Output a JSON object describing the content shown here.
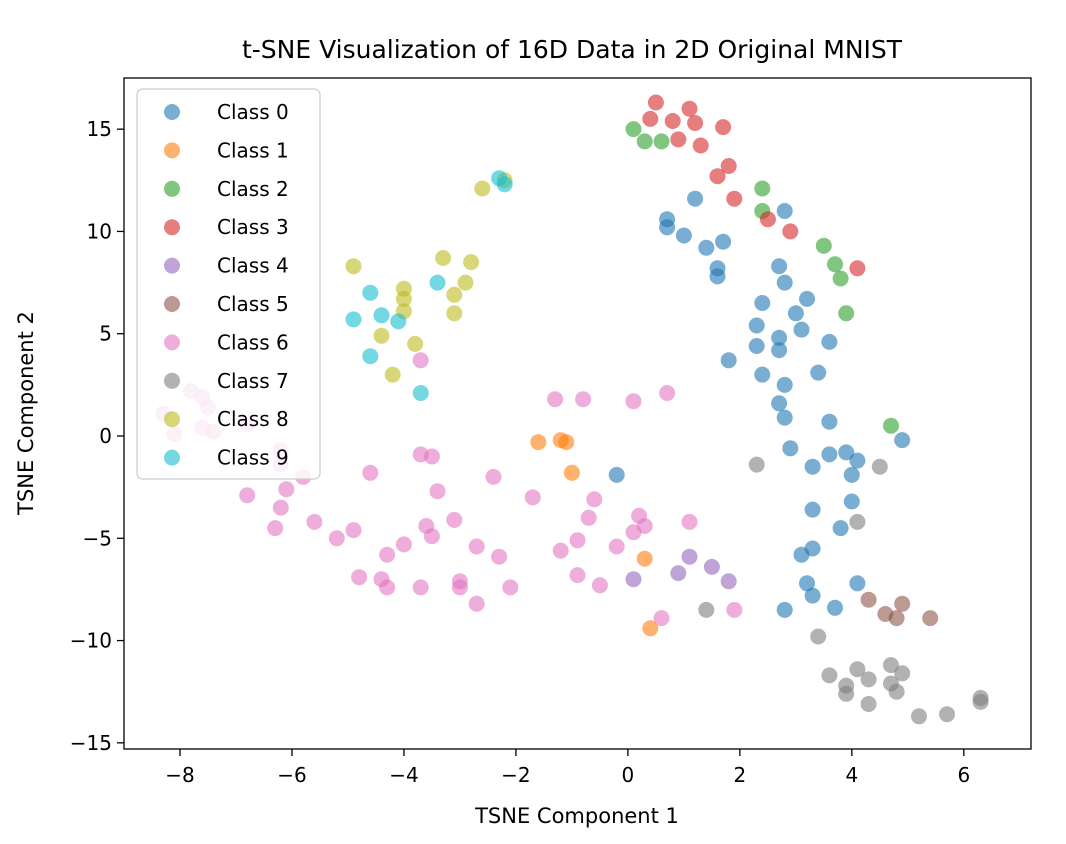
{
  "chart_data": {
    "type": "scatter",
    "title": "t-SNE Visualization of 16D Data in 2D Original MNIST",
    "xlabel": "TSNE Component 1",
    "ylabel": "TSNE Component 2",
    "xlim": [
      -9.0,
      7.2
    ],
    "ylim": [
      -15.3,
      17.5
    ],
    "xticks": [
      {
        "value": -8,
        "label": "−8"
      },
      {
        "value": -6,
        "label": "−6"
      },
      {
        "value": -4,
        "label": "−4"
      },
      {
        "value": -2,
        "label": "−2"
      },
      {
        "value": 0,
        "label": "0"
      },
      {
        "value": 2,
        "label": "2"
      },
      {
        "value": 4,
        "label": "4"
      },
      {
        "value": 6,
        "label": "6"
      }
    ],
    "yticks": [
      {
        "value": -15,
        "label": "−15"
      },
      {
        "value": -10,
        "label": "−10"
      },
      {
        "value": -5,
        "label": "−5"
      },
      {
        "value": 0,
        "label": "0"
      },
      {
        "value": 5,
        "label": "5"
      },
      {
        "value": 10,
        "label": "10"
      },
      {
        "value": 15,
        "label": "15"
      }
    ],
    "legend_position": "top-left",
    "grid": false,
    "series": [
      {
        "name": "Class 0",
        "color": "#1f77b4",
        "points": [
          [
            0.7,
            10.6
          ],
          [
            0.7,
            10.2
          ],
          [
            1.0,
            9.8
          ],
          [
            1.2,
            11.6
          ],
          [
            1.4,
            9.2
          ],
          [
            1.7,
            9.5
          ],
          [
            1.6,
            8.2
          ],
          [
            1.6,
            7.8
          ],
          [
            2.8,
            11.0
          ],
          [
            2.7,
            8.3
          ],
          [
            2.8,
            7.5
          ],
          [
            2.4,
            6.5
          ],
          [
            3.2,
            6.7
          ],
          [
            3.0,
            6.0
          ],
          [
            2.3,
            5.4
          ],
          [
            3.1,
            5.2
          ],
          [
            2.7,
            4.8
          ],
          [
            2.3,
            4.4
          ],
          [
            2.7,
            4.2
          ],
          [
            3.6,
            4.6
          ],
          [
            1.8,
            3.7
          ],
          [
            2.4,
            3.0
          ],
          [
            3.4,
            3.1
          ],
          [
            2.8,
            2.5
          ],
          [
            2.7,
            1.6
          ],
          [
            2.8,
            0.9
          ],
          [
            3.6,
            0.7
          ],
          [
            2.9,
            -0.6
          ],
          [
            3.6,
            -0.9
          ],
          [
            3.9,
            -0.8
          ],
          [
            4.1,
            -1.2
          ],
          [
            3.3,
            -1.5
          ],
          [
            4.0,
            -1.9
          ],
          [
            4.9,
            -0.2
          ],
          [
            -0.2,
            -1.9
          ],
          [
            4.0,
            -3.2
          ],
          [
            3.3,
            -3.6
          ],
          [
            3.8,
            -4.5
          ],
          [
            3.3,
            -5.5
          ],
          [
            3.1,
            -5.8
          ],
          [
            3.2,
            -7.2
          ],
          [
            4.1,
            -7.2
          ],
          [
            3.3,
            -7.8
          ],
          [
            2.8,
            -8.5
          ],
          [
            3.7,
            -8.4
          ]
        ]
      },
      {
        "name": "Class 1",
        "color": "#ff7f0e",
        "points": [
          [
            -1.6,
            -0.3
          ],
          [
            -1.2,
            -0.2
          ],
          [
            -1.1,
            -0.3
          ],
          [
            -1.0,
            -1.8
          ],
          [
            0.3,
            -6.0
          ],
          [
            0.4,
            -9.4
          ]
        ]
      },
      {
        "name": "Class 2",
        "color": "#2ca02c",
        "points": [
          [
            0.1,
            15.0
          ],
          [
            0.3,
            14.4
          ],
          [
            0.6,
            14.4
          ],
          [
            2.4,
            12.1
          ],
          [
            2.4,
            11.0
          ],
          [
            3.5,
            9.3
          ],
          [
            3.7,
            8.4
          ],
          [
            3.8,
            7.7
          ],
          [
            3.9,
            6.0
          ],
          [
            4.7,
            0.5
          ]
        ]
      },
      {
        "name": "Class 3",
        "color": "#d62728",
        "points": [
          [
            0.5,
            16.3
          ],
          [
            0.4,
            15.5
          ],
          [
            0.8,
            15.4
          ],
          [
            1.1,
            16.0
          ],
          [
            1.2,
            15.3
          ],
          [
            1.7,
            15.1
          ],
          [
            0.9,
            14.5
          ],
          [
            1.3,
            14.2
          ],
          [
            1.6,
            12.7
          ],
          [
            1.8,
            13.2
          ],
          [
            1.9,
            11.6
          ],
          [
            2.5,
            10.6
          ],
          [
            2.9,
            10.0
          ],
          [
            4.1,
            8.2
          ]
        ]
      },
      {
        "name": "Class 4",
        "color": "#9467bd",
        "points": [
          [
            1.1,
            -5.9
          ],
          [
            1.5,
            -6.4
          ],
          [
            0.9,
            -6.7
          ],
          [
            0.1,
            -7.0
          ],
          [
            1.8,
            -7.1
          ]
        ]
      },
      {
        "name": "Class 5",
        "color": "#8c564b",
        "points": [
          [
            4.3,
            -8.0
          ],
          [
            4.6,
            -8.7
          ],
          [
            4.8,
            -8.9
          ],
          [
            4.9,
            -8.2
          ],
          [
            5.4,
            -8.9
          ]
        ]
      },
      {
        "name": "Class 6",
        "color": "#e377c2",
        "points": [
          [
            -8.3,
            1.1
          ],
          [
            -8.1,
            0.1
          ],
          [
            -7.8,
            2.2
          ],
          [
            -7.6,
            1.9
          ],
          [
            -7.5,
            1.4
          ],
          [
            -7.6,
            0.4
          ],
          [
            -7.4,
            0.2
          ],
          [
            -6.8,
            0.6
          ],
          [
            -6.2,
            -0.7
          ],
          [
            -6.2,
            -1.4
          ],
          [
            -6.1,
            -2.6
          ],
          [
            -6.2,
            -3.5
          ],
          [
            -6.8,
            -2.9
          ],
          [
            -6.3,
            -4.5
          ],
          [
            -5.8,
            -2.0
          ],
          [
            -5.6,
            -4.2
          ],
          [
            -5.2,
            -5.0
          ],
          [
            -4.9,
            -4.6
          ],
          [
            -4.8,
            -6.9
          ],
          [
            -4.6,
            -1.8
          ],
          [
            -4.3,
            -5.8
          ],
          [
            -4.4,
            -7.0
          ],
          [
            -4.3,
            -7.4
          ],
          [
            -4.0,
            -5.3
          ],
          [
            -3.7,
            -0.9
          ],
          [
            -3.5,
            -1.0
          ],
          [
            -3.7,
            3.7
          ],
          [
            -3.6,
            -4.4
          ],
          [
            -3.5,
            -4.9
          ],
          [
            -3.4,
            -2.7
          ],
          [
            -3.7,
            -7.4
          ],
          [
            -3.1,
            -4.1
          ],
          [
            -3.0,
            -7.1
          ],
          [
            -3.0,
            -7.4
          ],
          [
            -2.7,
            -5.4
          ],
          [
            -2.7,
            -8.2
          ],
          [
            -2.4,
            -2.0
          ],
          [
            -2.3,
            -5.9
          ],
          [
            -2.1,
            -7.4
          ],
          [
            -1.7,
            -3.0
          ],
          [
            -1.3,
            1.8
          ],
          [
            -1.2,
            -5.6
          ],
          [
            -0.9,
            -5.1
          ],
          [
            -0.8,
            1.8
          ],
          [
            -0.7,
            -4.0
          ],
          [
            -0.6,
            -3.1
          ],
          [
            -0.5,
            -7.3
          ],
          [
            -0.9,
            -6.8
          ],
          [
            -0.2,
            -5.4
          ],
          [
            0.1,
            1.7
          ],
          [
            0.2,
            -3.9
          ],
          [
            0.1,
            -4.7
          ],
          [
            0.3,
            -4.4
          ],
          [
            0.7,
            2.1
          ],
          [
            1.1,
            -4.2
          ],
          [
            0.6,
            -8.9
          ],
          [
            1.9,
            -8.5
          ]
        ]
      },
      {
        "name": "Class 7",
        "color": "#7f7f7f",
        "points": [
          [
            2.3,
            -1.4
          ],
          [
            4.5,
            -1.5
          ],
          [
            4.1,
            -4.2
          ],
          [
            1.4,
            -8.5
          ],
          [
            3.4,
            -9.8
          ],
          [
            3.6,
            -11.7
          ],
          [
            3.9,
            -12.2
          ],
          [
            3.9,
            -12.6
          ],
          [
            4.1,
            -11.4
          ],
          [
            4.3,
            -11.9
          ],
          [
            4.3,
            -13.1
          ],
          [
            4.7,
            -11.2
          ],
          [
            4.7,
            -12.1
          ],
          [
            4.8,
            -12.5
          ],
          [
            4.9,
            -11.6
          ],
          [
            5.2,
            -13.7
          ],
          [
            5.7,
            -13.6
          ],
          [
            6.3,
            -12.8
          ],
          [
            6.3,
            -13.0
          ]
        ]
      },
      {
        "name": "Class 8",
        "color": "#bcbd22",
        "points": [
          [
            -2.6,
            12.1
          ],
          [
            -2.2,
            12.5
          ],
          [
            -4.9,
            8.3
          ],
          [
            -4.0,
            7.2
          ],
          [
            -4.0,
            6.7
          ],
          [
            -4.0,
            6.1
          ],
          [
            -3.3,
            8.7
          ],
          [
            -2.8,
            8.5
          ],
          [
            -2.9,
            7.5
          ],
          [
            -3.1,
            6.9
          ],
          [
            -3.1,
            6.0
          ],
          [
            -4.4,
            4.9
          ],
          [
            -3.8,
            4.5
          ],
          [
            -4.2,
            3.0
          ]
        ]
      },
      {
        "name": "Class 9",
        "color": "#17becf",
        "points": [
          [
            -2.3,
            12.6
          ],
          [
            -2.2,
            12.3
          ],
          [
            -4.6,
            7.0
          ],
          [
            -4.9,
            5.7
          ],
          [
            -4.4,
            5.9
          ],
          [
            -4.1,
            5.6
          ],
          [
            -3.4,
            7.5
          ],
          [
            -4.6,
            3.9
          ],
          [
            -3.7,
            2.1
          ]
        ]
      }
    ]
  }
}
